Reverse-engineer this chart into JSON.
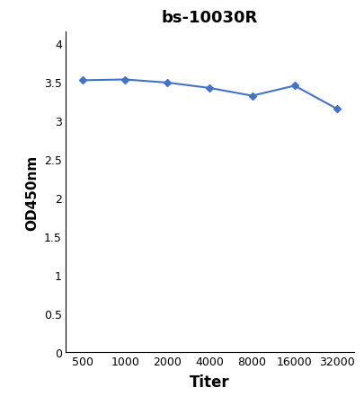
{
  "title": "bs-10030R",
  "xlabel": "Titer",
  "ylabel": "OD450nm",
  "x_values": [
    500,
    1000,
    2000,
    4000,
    8000,
    16000,
    32000
  ],
  "y_values": [
    3.52,
    3.53,
    3.49,
    3.42,
    3.32,
    3.45,
    3.15
  ],
  "x_tick_labels": [
    "500",
    "1000",
    "2000",
    "4000",
    "8000",
    "16000",
    "32000"
  ],
  "y_ticks": [
    0,
    0.5,
    1,
    1.5,
    2,
    2.5,
    3,
    3.5,
    4
  ],
  "y_tick_labels": [
    "0",
    "0.5",
    "1",
    "1.5",
    "2",
    "2.5",
    "3",
    "3.5",
    "4"
  ],
  "ylim": [
    0,
    4.15
  ],
  "line_color": "#4472C4",
  "marker": "D",
  "marker_size": 4,
  "line_width": 1.5,
  "title_fontsize": 13,
  "title_fontweight": "bold",
  "xlabel_fontsize": 12,
  "xlabel_fontweight": "bold",
  "ylabel_fontsize": 11,
  "ylabel_fontweight": "bold",
  "tick_fontsize": 9,
  "background_color": "#ffffff"
}
